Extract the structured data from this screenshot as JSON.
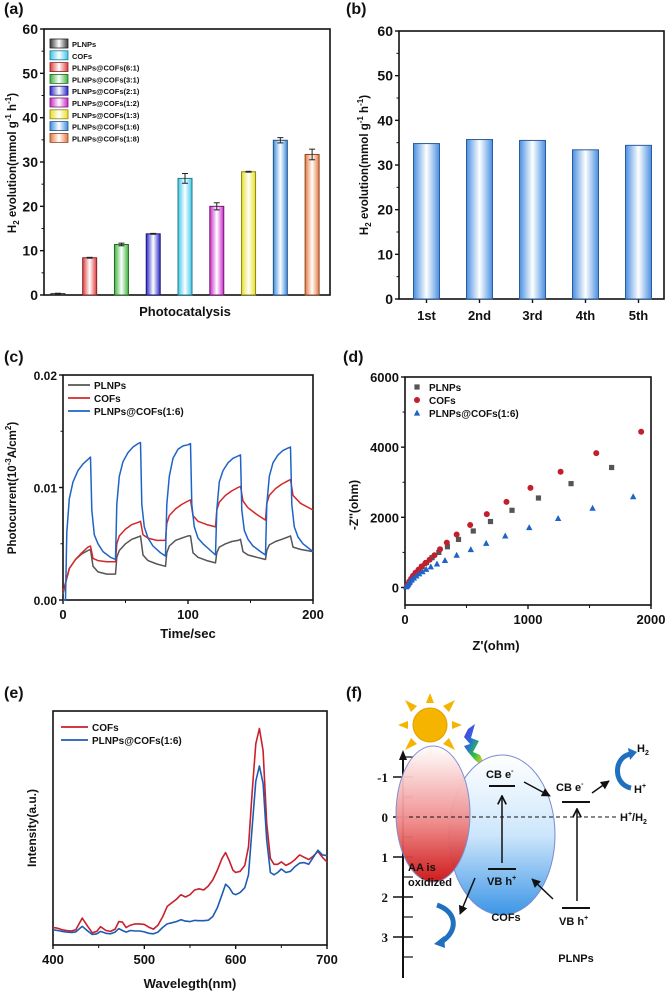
{
  "figure": {
    "panel_labels": [
      "(a)",
      "(b)",
      "(c)",
      "(d)",
      "(e)",
      "(f)"
    ]
  },
  "chart_data": [
    {
      "id": "a",
      "type": "bar",
      "title": "",
      "xlabel": "Photocatalysis",
      "ylabel": "H2 evolution(mmol g-1 h-1)",
      "ylabel_parts": {
        "main": "H",
        "sub": "2",
        "rest": " evolution(mmol g",
        "sup1": "-1",
        "mid": " h",
        "sup2": "-1",
        "end": ")"
      },
      "ylim": [
        0,
        60
      ],
      "yticks": [
        0,
        10,
        20,
        30,
        40,
        50,
        60
      ],
      "grid": false,
      "legend_position": "top-left",
      "legend": [
        {
          "label": "PLNPs",
          "color": "#3a3a3a"
        },
        {
          "label": "COFs",
          "color": "#3cc8e8"
        },
        {
          "label": "PLNPs@COFs(6:1)",
          "color": "#e03c3c"
        },
        {
          "label": "PLNPs@COFs(3:1)",
          "color": "#3cb43c"
        },
        {
          "label": "PLNPs@COFs(2:1)",
          "color": "#2a2ac8"
        },
        {
          "label": "PLNPs@COFs(1:2)",
          "color": "#c828c8"
        },
        {
          "label": "PLNPs@COFs(1:3)",
          "color": "#e8e020"
        },
        {
          "label": "PLNPs@COFs(1:6)",
          "color": "#3c8ce0"
        },
        {
          "label": "PLNPs@COFs(1:8)",
          "color": "#e8783c"
        }
      ],
      "bars": [
        {
          "category": "PLNPs",
          "value": 0.3,
          "error": 0.1,
          "color": "#3a3a3a"
        },
        {
          "category": "PLNPs@COFs(6:1)",
          "value": 8.4,
          "error": 0.1,
          "color": "#e03c3c"
        },
        {
          "category": "PLNPs@COFs(3:1)",
          "value": 11.4,
          "error": 0.3,
          "color": "#3cb43c"
        },
        {
          "category": "PLNPs@COFs(2:1)",
          "value": 13.8,
          "error": 0.1,
          "color": "#2a2ac8"
        },
        {
          "category": "COFs",
          "value": 26.3,
          "error": 1.1,
          "color": "#3cc8e8"
        },
        {
          "category": "PLNPs@COFs(1:2)",
          "value": 20.0,
          "error": 0.8,
          "color": "#c828c8"
        },
        {
          "category": "PLNPs@COFs(1:3)",
          "value": 27.8,
          "error": 0.1,
          "color": "#e8e020"
        },
        {
          "category": "PLNPs@COFs(1:6)",
          "value": 34.9,
          "error": 0.6,
          "color": "#3c8ce0"
        },
        {
          "category": "PLNPs@COFs(1:8)",
          "value": 31.7,
          "error": 1.2,
          "color": "#e8783c"
        }
      ]
    },
    {
      "id": "b",
      "type": "bar",
      "title": "",
      "xlabel": "",
      "ylabel": "H2 evolution(mmol g-1 h-1)",
      "ylabel_parts": {
        "main": "H",
        "sub": "2",
        "rest": " evolution(mmol g",
        "sup1": "-1",
        "mid": " h",
        "sup2": "-1",
        "end": ")"
      },
      "ylim": [
        0,
        60
      ],
      "yticks": [
        0,
        10,
        20,
        30,
        40,
        50,
        60
      ],
      "grid": false,
      "categories": [
        "1st",
        "2nd",
        "3rd",
        "4th",
        "5th"
      ],
      "values": [
        34.8,
        35.7,
        35.5,
        33.4,
        34.4
      ],
      "color": "#3c8ce0"
    },
    {
      "id": "c",
      "type": "line",
      "title": "",
      "xlabel": "Time/sec",
      "ylabel": "Photocurrent(10-3A/cm2)",
      "ylabel_parts": {
        "pre": "Photocurrent(10",
        "sup1": "-3",
        "mid": "A/cm",
        "sup2": "2",
        "end": ")"
      },
      "xlim": [
        0,
        200
      ],
      "ylim": [
        0,
        0.02
      ],
      "xticks": [
        0,
        100,
        200
      ],
      "yticks": [
        0.0,
        0.01,
        0.02
      ],
      "ytick_labels": [
        "0.00",
        "0.01",
        "0.02"
      ],
      "grid": false,
      "legend_position": "top-left",
      "series": [
        {
          "name": "PLNPs",
          "color": "#555555",
          "x": [
            0,
            2,
            5,
            10,
            15,
            20,
            22,
            24,
            28,
            35,
            42,
            43,
            45,
            50,
            55,
            60,
            62,
            64,
            68,
            75,
            82,
            83,
            85,
            90,
            95,
            100,
            102,
            104,
            108,
            115,
            122,
            123,
            125,
            130,
            135,
            140,
            142,
            144,
            148,
            155,
            162,
            163,
            165,
            170,
            175,
            180,
            182,
            184,
            190,
            200
          ],
          "y": [
            0.0005,
            0.0015,
            0.0028,
            0.0036,
            0.0041,
            0.0044,
            0.0045,
            0.003,
            0.0025,
            0.0023,
            0.0023,
            0.0038,
            0.0044,
            0.005,
            0.0054,
            0.0056,
            0.0057,
            0.004,
            0.0035,
            0.0032,
            0.003,
            0.0042,
            0.0048,
            0.0053,
            0.0055,
            0.0057,
            0.0057,
            0.0042,
            0.0038,
            0.0035,
            0.0033,
            0.0042,
            0.0047,
            0.005,
            0.0052,
            0.0053,
            0.0054,
            0.0043,
            0.004,
            0.0038,
            0.0036,
            0.0044,
            0.0049,
            0.0052,
            0.0054,
            0.0056,
            0.0057,
            0.0047,
            0.0045,
            0.0043
          ]
        },
        {
          "name": "COFs",
          "color": "#d42828",
          "x": [
            0,
            2,
            5,
            10,
            15,
            20,
            22,
            24,
            28,
            35,
            42,
            43,
            45,
            50,
            55,
            60,
            62,
            64,
            68,
            75,
            82,
            83,
            85,
            90,
            95,
            100,
            102,
            104,
            108,
            115,
            122,
            123,
            125,
            130,
            135,
            140,
            142,
            144,
            148,
            155,
            162,
            163,
            165,
            170,
            175,
            180,
            182,
            184,
            190,
            200
          ],
          "y": [
            0.0008,
            0.0015,
            0.0028,
            0.0036,
            0.0042,
            0.0047,
            0.0048,
            0.0037,
            0.0035,
            0.0034,
            0.0034,
            0.005,
            0.0057,
            0.0063,
            0.0067,
            0.0069,
            0.007,
            0.0058,
            0.0055,
            0.0053,
            0.0053,
            0.0068,
            0.0075,
            0.0081,
            0.0085,
            0.0088,
            0.0089,
            0.0075,
            0.007,
            0.0067,
            0.0065,
            0.008,
            0.0087,
            0.0093,
            0.0097,
            0.01,
            0.0101,
            0.0088,
            0.0082,
            0.0076,
            0.0071,
            0.0086,
            0.0093,
            0.0099,
            0.0103,
            0.0106,
            0.0107,
            0.0093,
            0.0086,
            0.008
          ]
        },
        {
          "name": "PLNPs@COFs(1:6)",
          "color": "#1e64c8",
          "x": [
            0,
            2,
            3,
            5,
            8,
            12,
            16,
            20,
            22,
            23,
            25,
            28,
            32,
            38,
            42,
            43,
            45,
            48,
            52,
            56,
            60,
            62,
            63,
            65,
            68,
            72,
            78,
            82,
            83,
            85,
            88,
            92,
            96,
            100,
            102,
            103,
            105,
            108,
            112,
            118,
            122,
            123,
            125,
            128,
            132,
            136,
            140,
            142,
            143,
            145,
            148,
            152,
            158,
            162,
            163,
            165,
            168,
            172,
            176,
            180,
            182,
            183,
            185,
            188,
            192,
            200
          ],
          "y": [
            0.0,
            0.0,
            0.006,
            0.009,
            0.0105,
            0.0115,
            0.0121,
            0.0125,
            0.0127,
            0.008,
            0.0058,
            0.005,
            0.0043,
            0.0038,
            0.0036,
            0.0085,
            0.011,
            0.0123,
            0.0131,
            0.0136,
            0.0139,
            0.014,
            0.0085,
            0.0065,
            0.0055,
            0.0048,
            0.0042,
            0.0039,
            0.0085,
            0.011,
            0.0126,
            0.0134,
            0.0137,
            0.0138,
            0.0139,
            0.0085,
            0.0065,
            0.0055,
            0.005,
            0.0044,
            0.004,
            0.008,
            0.0105,
            0.0115,
            0.0122,
            0.0126,
            0.0128,
            0.0129,
            0.008,
            0.0062,
            0.0054,
            0.0048,
            0.0043,
            0.004,
            0.0085,
            0.011,
            0.0122,
            0.0129,
            0.0133,
            0.0135,
            0.0136,
            0.0085,
            0.0065,
            0.0056,
            0.005,
            0.0043
          ]
        }
      ]
    },
    {
      "id": "d",
      "type": "scatter",
      "title": "",
      "xlabel": "Z'(ohm)",
      "ylabel": "-Z''(ohm)",
      "xlim": [
        0,
        2000
      ],
      "ylim": [
        -500,
        6000
      ],
      "xticks": [
        0,
        1000,
        2000
      ],
      "yticks": [
        0,
        2000,
        4000,
        6000
      ],
      "grid": false,
      "legend_position": "top-left",
      "series": [
        {
          "name": "PLNPs",
          "marker": "square",
          "color": "#555555",
          "x": [
            15,
            25,
            35,
            50,
            65,
            85,
            110,
            140,
            175,
            220,
            275,
            345,
            435,
            555,
            695,
            870,
            1085,
            1350,
            1680
          ],
          "y": [
            30,
            80,
            140,
            210,
            290,
            380,
            480,
            590,
            710,
            850,
            1000,
            1160,
            1370,
            1610,
            1880,
            2200,
            2550,
            2960,
            3420
          ]
        },
        {
          "name": "COFs",
          "marker": "circle",
          "color": "#c41e2c",
          "x": [
            15,
            25,
            35,
            50,
            65,
            85,
            110,
            135,
            165,
            200,
            240,
            285,
            340,
            420,
            530,
            665,
            825,
            1020,
            1265,
            1555,
            1920
          ],
          "y": [
            40,
            100,
            170,
            250,
            330,
            420,
            510,
            600,
            690,
            790,
            920,
            1090,
            1280,
            1510,
            1780,
            2090,
            2440,
            2840,
            3300,
            3830,
            4440
          ]
        },
        {
          "name": "PLNPs@COFs(1:6)",
          "marker": "triangle",
          "color": "#1e64c8",
          "x": [
            10,
            18,
            28,
            40,
            55,
            72,
            92,
            115,
            142,
            172,
            210,
            260,
            325,
            420,
            535,
            660,
            815,
            1010,
            1245,
            1525,
            1855
          ],
          "y": [
            20,
            60,
            110,
            160,
            215,
            270,
            330,
            390,
            450,
            520,
            590,
            670,
            770,
            920,
            1080,
            1260,
            1470,
            1710,
            1970,
            2260,
            2590
          ]
        }
      ]
    },
    {
      "id": "e",
      "type": "line",
      "title": "",
      "xlabel": "Wavelegth(nm)",
      "ylabel": "Intensity(a.u.)",
      "xlim": [
        400,
        700
      ],
      "ylim": [
        0,
        1
      ],
      "xticks": [
        400,
        500,
        600,
        700
      ],
      "yticks": [],
      "grid": false,
      "legend_position": "top-left",
      "series": [
        {
          "name": "COFs",
          "color": "#c8202c",
          "x": [
            400,
            405,
            410,
            415,
            420,
            425,
            432,
            438,
            443,
            448,
            452,
            458,
            463,
            468,
            472,
            476,
            480,
            485,
            490,
            495,
            500,
            505,
            510,
            515,
            520,
            525,
            530,
            535,
            540,
            545,
            550,
            555,
            560,
            565,
            570,
            575,
            580,
            585,
            589,
            593,
            597,
            600,
            605,
            610,
            614,
            618,
            622,
            626,
            630,
            634,
            638,
            642,
            646,
            650,
            655,
            660,
            665,
            670,
            675,
            680,
            685,
            690,
            695,
            700
          ],
          "y": [
            0.075,
            0.072,
            0.065,
            0.062,
            0.06,
            0.065,
            0.115,
            0.08,
            0.052,
            0.058,
            0.078,
            0.062,
            0.058,
            0.068,
            0.1,
            0.098,
            0.075,
            0.085,
            0.09,
            0.09,
            0.088,
            0.076,
            0.068,
            0.085,
            0.12,
            0.165,
            0.18,
            0.195,
            0.215,
            0.205,
            0.215,
            0.235,
            0.24,
            0.235,
            0.252,
            0.278,
            0.32,
            0.37,
            0.395,
            0.36,
            0.32,
            0.31,
            0.315,
            0.34,
            0.42,
            0.65,
            0.86,
            0.925,
            0.83,
            0.52,
            0.37,
            0.345,
            0.345,
            0.355,
            0.34,
            0.35,
            0.365,
            0.385,
            0.375,
            0.365,
            0.38,
            0.4,
            0.375,
            0.355
          ]
        },
        {
          "name": "PLNPs@COFs(1:6)",
          "color": "#1e5cb4",
          "x": [
            400,
            405,
            410,
            415,
            420,
            425,
            432,
            438,
            443,
            448,
            452,
            458,
            463,
            468,
            472,
            476,
            480,
            485,
            490,
            495,
            500,
            505,
            510,
            515,
            520,
            525,
            530,
            535,
            540,
            545,
            550,
            555,
            560,
            565,
            570,
            575,
            580,
            585,
            589,
            593,
            597,
            600,
            605,
            610,
            614,
            618,
            622,
            626,
            630,
            634,
            638,
            642,
            646,
            650,
            655,
            660,
            665,
            670,
            675,
            680,
            685,
            690,
            695,
            700
          ],
          "y": [
            0.065,
            0.062,
            0.058,
            0.055,
            0.054,
            0.056,
            0.08,
            0.06,
            0.045,
            0.048,
            0.058,
            0.05,
            0.048,
            0.055,
            0.07,
            0.062,
            0.055,
            0.062,
            0.06,
            0.06,
            0.056,
            0.05,
            0.048,
            0.055,
            0.075,
            0.09,
            0.095,
            0.1,
            0.108,
            0.102,
            0.1,
            0.105,
            0.104,
            0.104,
            0.106,
            0.122,
            0.16,
            0.215,
            0.26,
            0.245,
            0.22,
            0.215,
            0.225,
            0.245,
            0.3,
            0.5,
            0.7,
            0.765,
            0.69,
            0.45,
            0.31,
            0.3,
            0.31,
            0.325,
            0.31,
            0.315,
            0.335,
            0.35,
            0.352,
            0.345,
            0.375,
            0.405,
            0.385,
            0.382
          ]
        }
      ]
    }
  ],
  "diagram_f": {
    "axis_ticks": [
      "-1",
      "0",
      "1",
      "2",
      "3"
    ],
    "cof_label": "COFs",
    "plnp_label": "PLNPs",
    "cb_label": "CB e",
    "cb_sup": "-",
    "vb_label": "VB h",
    "vb_sup": "+",
    "redox_label": "H+/H2",
    "redox_parts": {
      "a": "H",
      "a_sup": "+",
      "slash": "/H",
      "b_sub": "2"
    },
    "h2_parts": {
      "a": "H",
      "sub": "2"
    },
    "hplus_parts": {
      "a": "H",
      "sup": "+"
    },
    "aa_line1": "AA is",
    "aa_line2": "oxidized",
    "colors": {
      "cof": "#d42a2a",
      "plnp": "#4aa0e8",
      "sun": "#f4b400",
      "arrow_blue": "#2070c0"
    }
  }
}
